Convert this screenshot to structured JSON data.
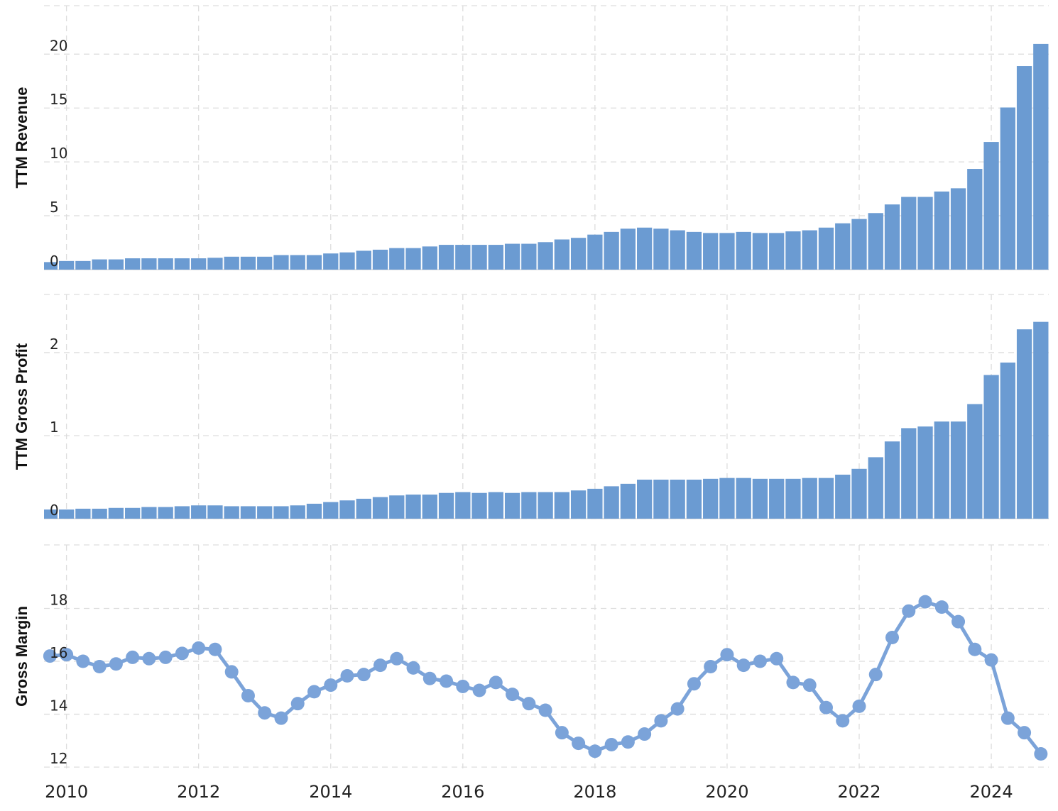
{
  "colors": {
    "bar": "#6b9bd2",
    "line": "#7ba3d9",
    "grid": "#dddddd",
    "text": "#222222"
  },
  "x_axis": {
    "tick_labels": [
      "2010",
      "2012",
      "2014",
      "2016",
      "2018",
      "2020",
      "2022",
      "2024"
    ]
  },
  "chart_data": [
    {
      "type": "bar",
      "ylabel": "TTM Revenue",
      "ylim": [
        0,
        24.5
      ],
      "yticks": [
        0,
        5,
        10,
        15,
        20
      ],
      "grid": true,
      "x": [
        2009.75,
        2010.0,
        2010.25,
        2010.5,
        2010.75,
        2011.0,
        2011.25,
        2011.5,
        2011.75,
        2012.0,
        2012.25,
        2012.5,
        2012.75,
        2013.0,
        2013.25,
        2013.5,
        2013.75,
        2014.0,
        2014.25,
        2014.5,
        2014.75,
        2015.0,
        2015.25,
        2015.5,
        2015.75,
        2016.0,
        2016.25,
        2016.5,
        2016.75,
        2017.0,
        2017.25,
        2017.5,
        2017.75,
        2018.0,
        2018.25,
        2018.5,
        2018.75,
        2019.0,
        2019.25,
        2019.5,
        2019.75,
        2020.0,
        2020.25,
        2020.5,
        2020.75,
        2021.0,
        2021.25,
        2021.5,
        2021.75,
        2022.0,
        2022.25,
        2022.5,
        2022.75,
        2023.0,
        2023.25,
        2023.5,
        2023.75,
        2024.0,
        2024.25,
        2024.5,
        2024.75
      ],
      "values": [
        0.7,
        0.8,
        0.8,
        0.95,
        0.95,
        1.05,
        1.05,
        1.05,
        1.05,
        1.05,
        1.1,
        1.2,
        1.2,
        1.2,
        1.35,
        1.35,
        1.35,
        1.5,
        1.6,
        1.75,
        1.85,
        2.0,
        2.0,
        2.15,
        2.3,
        2.3,
        2.3,
        2.3,
        2.4,
        2.4,
        2.55,
        2.8,
        2.95,
        3.25,
        3.5,
        3.8,
        3.9,
        3.8,
        3.65,
        3.5,
        3.4,
        3.4,
        3.5,
        3.4,
        3.4,
        3.55,
        3.65,
        3.9,
        4.3,
        4.7,
        5.25,
        6.05,
        6.75,
        6.75,
        7.25,
        7.55,
        9.35,
        11.85,
        15.05,
        18.9,
        20.95
      ]
    },
    {
      "type": "bar",
      "ylabel": "TTM Gross Profit",
      "ylim": [
        0,
        2.7
      ],
      "yticks": [
        0,
        1,
        2
      ],
      "grid": true,
      "x": [
        2009.75,
        2010.0,
        2010.25,
        2010.5,
        2010.75,
        2011.0,
        2011.25,
        2011.5,
        2011.75,
        2012.0,
        2012.25,
        2012.5,
        2012.75,
        2013.0,
        2013.25,
        2013.5,
        2013.75,
        2014.0,
        2014.25,
        2014.5,
        2014.75,
        2015.0,
        2015.25,
        2015.5,
        2015.75,
        2016.0,
        2016.25,
        2016.5,
        2016.75,
        2017.0,
        2017.25,
        2017.5,
        2017.75,
        2018.0,
        2018.25,
        2018.5,
        2018.75,
        2019.0,
        2019.25,
        2019.5,
        2019.75,
        2020.0,
        2020.25,
        2020.5,
        2020.75,
        2021.0,
        2021.25,
        2021.5,
        2021.75,
        2022.0,
        2022.25,
        2022.5,
        2022.75,
        2023.0,
        2023.25,
        2023.5,
        2023.75,
        2024.0,
        2024.25,
        2024.5,
        2024.75
      ],
      "values": [
        0.11,
        0.11,
        0.12,
        0.12,
        0.13,
        0.13,
        0.14,
        0.14,
        0.15,
        0.16,
        0.16,
        0.15,
        0.15,
        0.15,
        0.15,
        0.16,
        0.18,
        0.2,
        0.22,
        0.24,
        0.26,
        0.28,
        0.29,
        0.29,
        0.31,
        0.32,
        0.31,
        0.32,
        0.31,
        0.32,
        0.32,
        0.32,
        0.34,
        0.36,
        0.39,
        0.42,
        0.47,
        0.47,
        0.47,
        0.47,
        0.48,
        0.49,
        0.49,
        0.48,
        0.48,
        0.48,
        0.49,
        0.49,
        0.53,
        0.6,
        0.74,
        0.93,
        1.09,
        1.11,
        1.17,
        1.17,
        1.38,
        1.73,
        1.88,
        2.28,
        2.37
      ]
    },
    {
      "type": "line",
      "ylabel": "Gross Margin",
      "ylim": [
        11.95,
        20.4
      ],
      "yticks": [
        12,
        14,
        16,
        18
      ],
      "grid": true,
      "x": [
        2009.75,
        2010.0,
        2010.25,
        2010.5,
        2010.75,
        2011.0,
        2011.25,
        2011.5,
        2011.75,
        2012.0,
        2012.25,
        2012.5,
        2012.75,
        2013.0,
        2013.25,
        2013.5,
        2013.75,
        2014.0,
        2014.25,
        2014.5,
        2014.75,
        2015.0,
        2015.25,
        2015.5,
        2015.75,
        2016.0,
        2016.25,
        2016.5,
        2016.75,
        2017.0,
        2017.25,
        2017.5,
        2017.75,
        2018.0,
        2018.25,
        2018.5,
        2018.75,
        2019.0,
        2019.25,
        2019.5,
        2019.75,
        2020.0,
        2020.25,
        2020.5,
        2020.75,
        2021.0,
        2021.25,
        2021.5,
        2021.75,
        2022.0,
        2022.25,
        2022.5,
        2022.75,
        2023.0,
        2023.25,
        2023.5,
        2023.75,
        2024.0,
        2024.25,
        2024.5,
        2024.75
      ],
      "values": [
        16.2,
        16.25,
        16.0,
        15.8,
        15.9,
        16.15,
        16.1,
        16.15,
        16.3,
        16.5,
        16.45,
        15.6,
        14.7,
        14.05,
        13.85,
        14.4,
        14.85,
        15.1,
        15.45,
        15.5,
        15.85,
        16.1,
        15.75,
        15.35,
        15.25,
        15.05,
        14.9,
        15.2,
        14.75,
        14.4,
        14.15,
        13.3,
        12.9,
        12.6,
        12.85,
        12.95,
        13.25,
        13.75,
        14.2,
        15.15,
        15.8,
        16.25,
        15.85,
        16.0,
        16.1,
        15.2,
        15.1,
        14.25,
        13.75,
        14.3,
        15.5,
        16.9,
        17.9,
        18.25,
        18.05,
        17.5,
        16.45,
        16.05,
        13.85,
        13.3,
        12.5
      ]
    }
  ]
}
